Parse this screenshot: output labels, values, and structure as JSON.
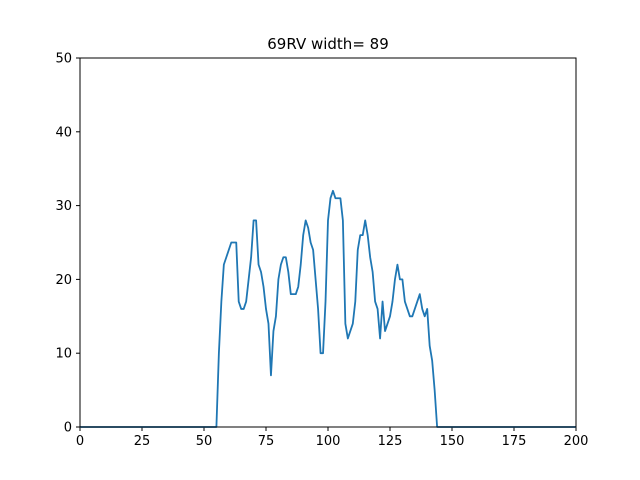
{
  "chart_data": {
    "type": "line",
    "title": "69RV width= 89",
    "xlabel": "",
    "ylabel": "",
    "xlim": [
      0,
      200
    ],
    "ylim": [
      0,
      50
    ],
    "xticks": [
      0,
      25,
      50,
      75,
      100,
      125,
      150,
      175,
      200
    ],
    "yticks": [
      0,
      10,
      20,
      30,
      40,
      50
    ],
    "grid": false,
    "line_color": "#1f77b4",
    "series": [
      {
        "x": [
          0,
          55,
          56,
          57,
          58,
          59,
          60,
          61,
          62,
          63,
          64,
          65,
          66,
          67,
          68,
          69,
          70,
          71,
          72,
          73,
          74,
          75,
          76,
          77,
          78,
          79,
          80,
          81,
          82,
          83,
          84,
          85,
          86,
          87,
          88,
          89,
          90,
          91,
          92,
          93,
          94,
          95,
          96,
          97,
          98,
          99,
          100,
          101,
          102,
          103,
          104,
          105,
          106,
          107,
          108,
          109,
          110,
          111,
          112,
          113,
          114,
          115,
          116,
          117,
          118,
          119,
          120,
          121,
          122,
          123,
          124,
          125,
          126,
          127,
          128,
          129,
          130,
          131,
          132,
          133,
          134,
          135,
          136,
          137,
          138,
          139,
          140,
          141,
          142,
          143,
          144,
          200
        ],
        "y": [
          0,
          0,
          10,
          17,
          22,
          23,
          24,
          25,
          25,
          25,
          17,
          16,
          16,
          17,
          20,
          23,
          28,
          28,
          22,
          21,
          19,
          16,
          14,
          7,
          13,
          15,
          20,
          22,
          23,
          23,
          21,
          18,
          18,
          18,
          19,
          22,
          26,
          28,
          27,
          25,
          24,
          20,
          16,
          10,
          10,
          17,
          28,
          31,
          32,
          31,
          31,
          31,
          28,
          14,
          12,
          13,
          14,
          17,
          24,
          26,
          26,
          28,
          26,
          23,
          21,
          17,
          16,
          12,
          17,
          13,
          14,
          15,
          17,
          20,
          22,
          20,
          20,
          17,
          16,
          15,
          15,
          16,
          17,
          18,
          16,
          15,
          16,
          11,
          9,
          5,
          0,
          0
        ]
      }
    ]
  }
}
